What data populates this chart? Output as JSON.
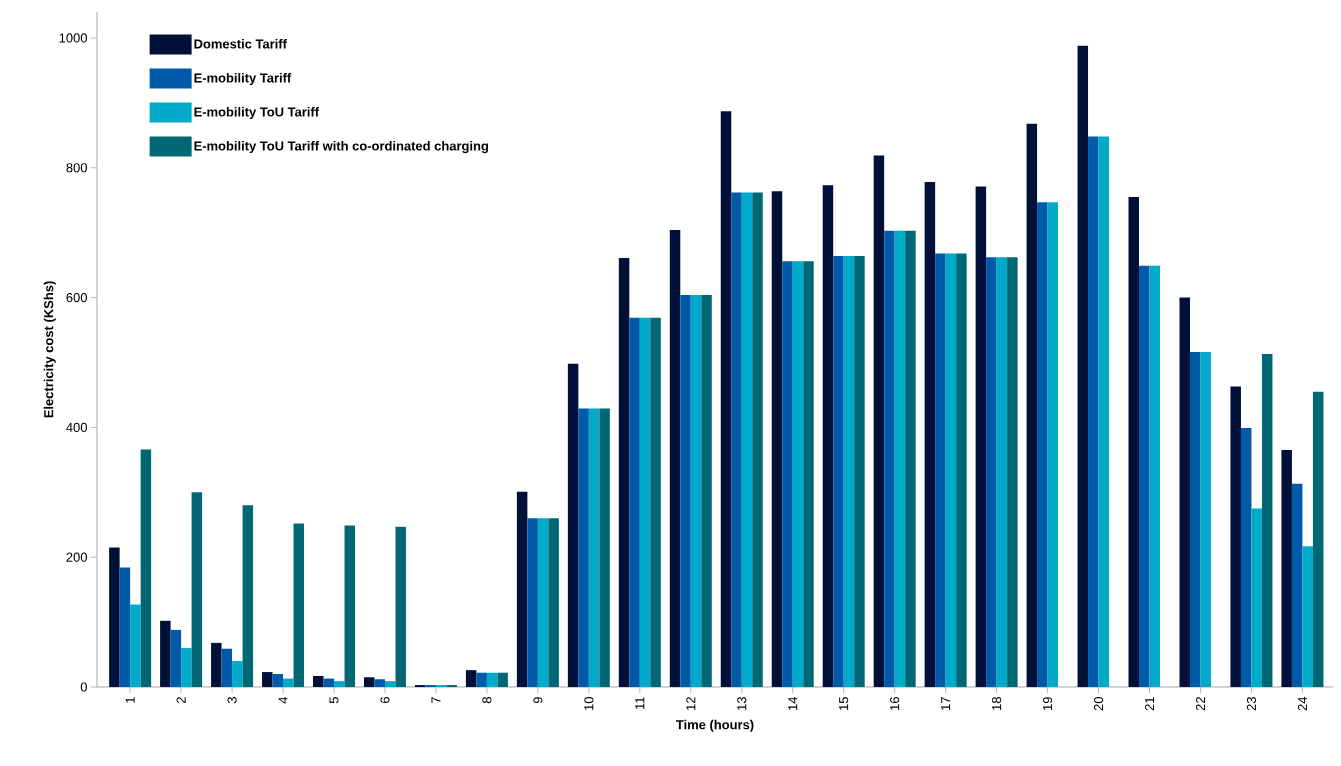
{
  "chart_data": {
    "type": "bar",
    "xlabel": "Time (hours)",
    "ylabel": "Electricity cost (KShs)",
    "categories": [
      "1",
      "2",
      "3",
      "4",
      "5",
      "6",
      "7",
      "8",
      "9",
      "10",
      "11",
      "12",
      "13",
      "14",
      "15",
      "16",
      "17",
      "18",
      "19",
      "20",
      "21",
      "22",
      "23",
      "24"
    ],
    "series": [
      {
        "name": "Domestic Tariff",
        "color": "#001038",
        "values": [
          215,
          102,
          68,
          23,
          17,
          15,
          3,
          26,
          301,
          498,
          661,
          704,
          887,
          764,
          773,
          819,
          778,
          771,
          868,
          988,
          755,
          600,
          463,
          365
        ]
      },
      {
        "name": "E-mobility Tariff",
        "color": "#005aaa",
        "values": [
          184,
          88,
          59,
          20,
          13,
          12,
          3,
          22,
          260,
          429,
          569,
          604,
          762,
          656,
          664,
          703,
          668,
          662,
          747,
          848,
          649,
          516,
          399,
          313
        ]
      },
      {
        "name": "E-mobility ToU Tariff",
        "color": "#00aac8",
        "values": [
          127,
          60,
          40,
          13,
          9,
          9,
          3,
          22,
          260,
          429,
          569,
          604,
          762,
          656,
          664,
          703,
          668,
          662,
          747,
          848,
          649,
          516,
          275,
          217
        ]
      },
      {
        "name": "E-mobility ToU Tariff with co-ordinated charging",
        "color": "#006874",
        "values": [
          366,
          300,
          280,
          252,
          249,
          247,
          3,
          22,
          260,
          429,
          569,
          604,
          762,
          656,
          664,
          703,
          668,
          662,
          null,
          null,
          null,
          null,
          513,
          455
        ]
      }
    ],
    "ylim": [
      0,
      1040
    ],
    "yticks": [
      0,
      200,
      400,
      600,
      800,
      1000
    ],
    "grid": false,
    "legend": "top left"
  }
}
